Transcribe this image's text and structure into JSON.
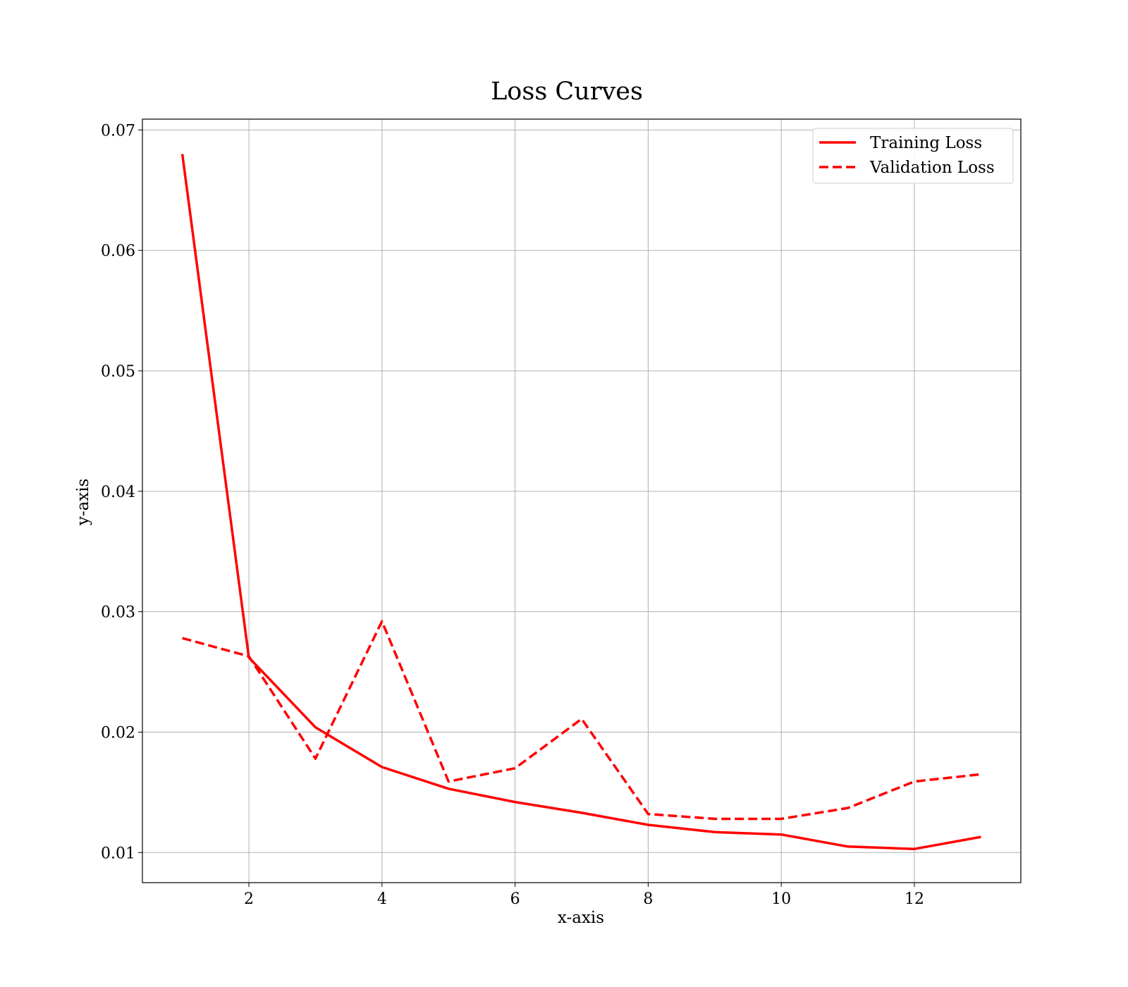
{
  "chart_data": {
    "type": "line",
    "title": "Loss Curves",
    "xlabel": "x-axis",
    "ylabel": "y-axis",
    "x": [
      1,
      2,
      3,
      4,
      5,
      6,
      7,
      8,
      9,
      10,
      11,
      12,
      13
    ],
    "series": [
      {
        "name": "Training Loss",
        "style": "solid",
        "color": "#ff0000",
        "values": [
          0.068,
          0.0262,
          0.0204,
          0.0171,
          0.0153,
          0.0142,
          0.0133,
          0.0123,
          0.0117,
          0.0115,
          0.0105,
          0.0103,
          0.0113
        ]
      },
      {
        "name": "Validation Loss",
        "style": "dashed",
        "color": "#ff0000",
        "values": [
          0.0278,
          0.0263,
          0.0178,
          0.0292,
          0.0159,
          0.017,
          0.0211,
          0.0132,
          0.0128,
          0.0128,
          0.0137,
          0.0159,
          0.0165
        ]
      }
    ],
    "xlim": [
      0.4,
      13.6
    ],
    "ylim": [
      0.0075,
      0.0709
    ],
    "xticks": [
      2,
      4,
      6,
      8,
      10,
      12
    ],
    "yticks": [
      0.01,
      0.02,
      0.03,
      0.04,
      0.05,
      0.06,
      0.07
    ],
    "xtick_labels": [
      "2",
      "4",
      "6",
      "8",
      "10",
      "12"
    ],
    "ytick_labels": [
      "0.01",
      "0.02",
      "0.03",
      "0.04",
      "0.05",
      "0.06",
      "0.07"
    ],
    "grid": true,
    "legend_position": "top-right"
  }
}
